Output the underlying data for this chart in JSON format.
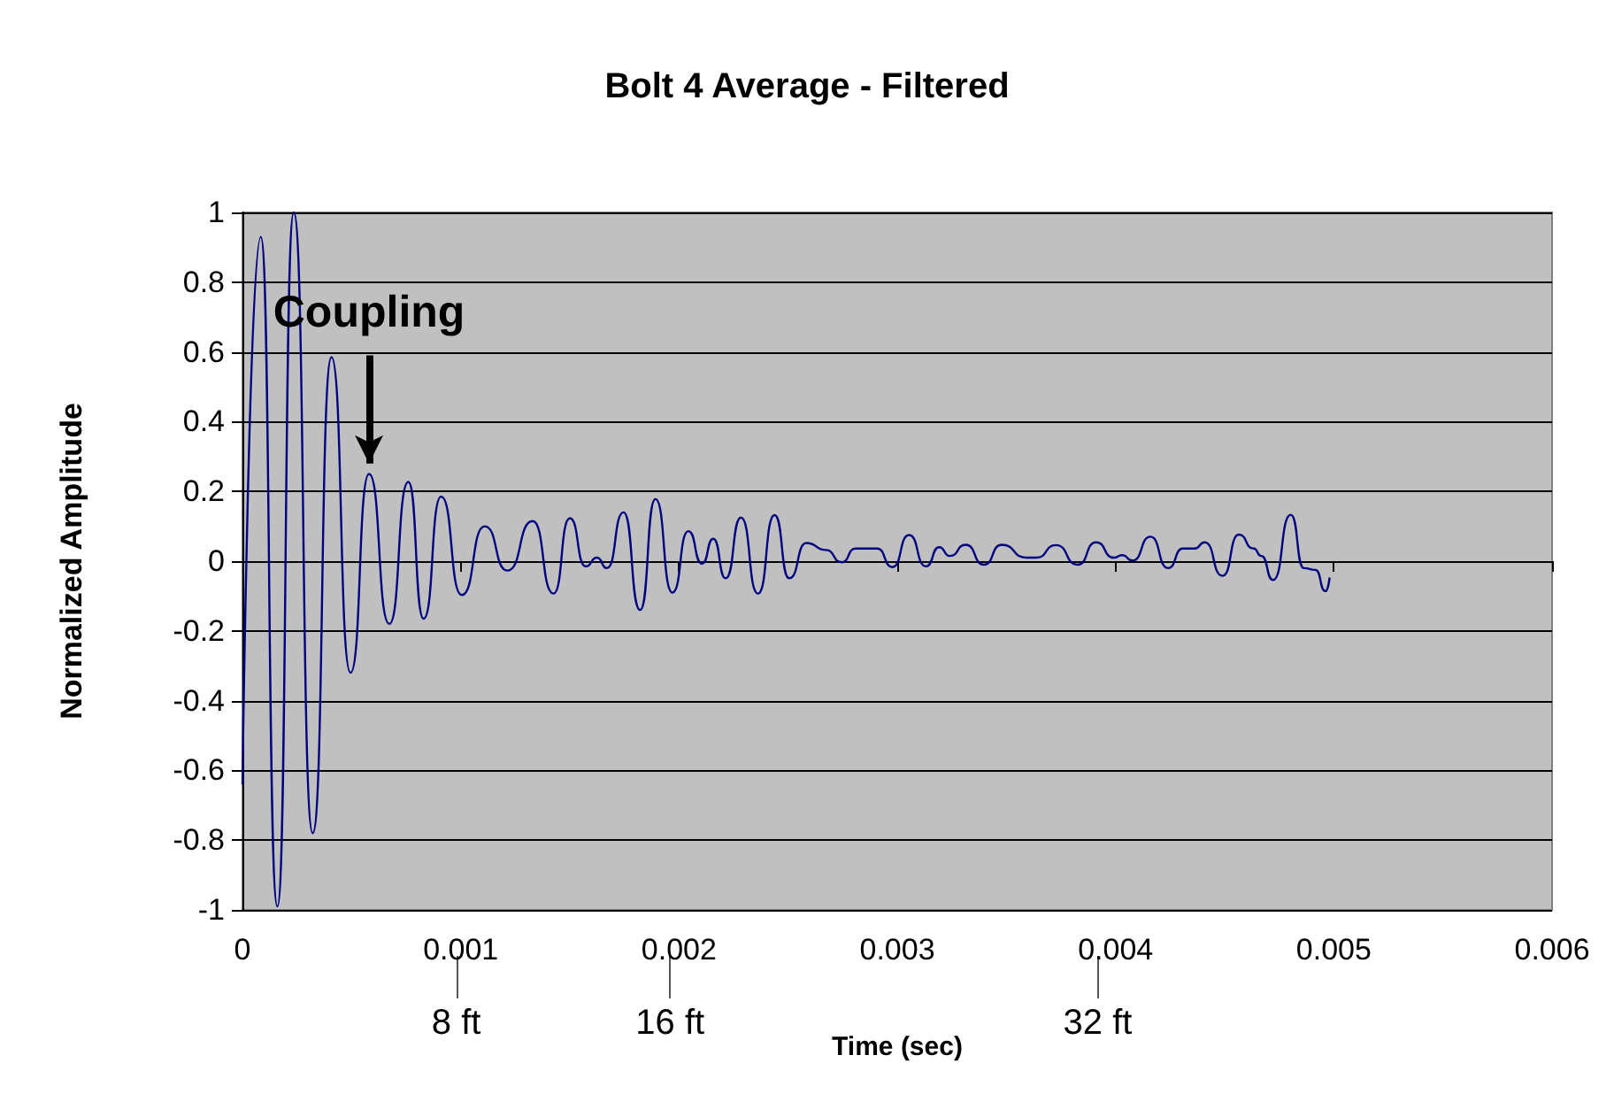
{
  "chart_data": {
    "type": "line",
    "title": "Bolt 4 Average - Filtered",
    "xlabel": "Time (sec)",
    "ylabel": "Normalized Amplitude",
    "xlim": [
      0,
      0.006
    ],
    "xticks": [
      0,
      0.001,
      0.002,
      0.003,
      0.004,
      0.005,
      0.006
    ],
    "ylim": [
      -1,
      1
    ],
    "yticks": [
      -1,
      -0.8,
      -0.6,
      -0.4,
      -0.2,
      0,
      0.2,
      0.4,
      0.6,
      0.8,
      1
    ],
    "x2lim": [
      0,
      49
    ],
    "x2ticks": [
      {
        "value": 8,
        "label": "8 ft"
      },
      {
        "value": 16,
        "label": "16 ft"
      },
      {
        "value": 32,
        "label": "32 ft"
      }
    ],
    "grid": "y",
    "marker": "none",
    "line_style": "solid",
    "annotations": [
      {
        "text": "Coupling",
        "x": 0.00058,
        "y": 0.25
      }
    ],
    "series": [
      {
        "color": "#000080",
        "x": [
          0,
          8.4e-05,
          0.00016,
          0.000235,
          0.000322,
          0.000408,
          0.000495,
          0.00058,
          0.000673,
          0.00076,
          0.00083,
          0.00091,
          0.001005,
          0.00111,
          0.001214,
          0.00133,
          0.001425,
          0.0015,
          0.001573,
          0.001624,
          0.00167,
          0.001746,
          0.001822,
          0.001892,
          0.00197,
          0.002043,
          0.002106,
          0.002157,
          0.002214,
          0.002284,
          0.002362,
          0.002438,
          0.002505,
          0.002584,
          0.002673,
          0.002746,
          0.002808,
          0.002908,
          0.002978,
          0.003054,
          0.003132,
          0.003192,
          0.003241,
          0.003314,
          0.003397,
          0.003478,
          0.003592,
          0.003638,
          0.003727,
          0.003827,
          0.003911,
          0.003992,
          0.00403,
          0.004078,
          0.00416,
          0.004241,
          0.004308,
          0.004362,
          0.004409,
          0.00449,
          0.004565,
          0.004633,
          0.004668,
          0.004722,
          0.004803,
          0.004863,
          0.004916,
          0.004962,
          0.004981
        ],
        "values": [
          -0.64,
          0.93,
          -0.99,
          1.0,
          -0.78,
          0.585,
          -0.32,
          0.25,
          -0.18,
          0.227,
          -0.165,
          0.185,
          -0.097,
          0.1,
          -0.027,
          0.115,
          -0.093,
          0.123,
          -0.015,
          0.01,
          -0.02,
          0.14,
          -0.14,
          0.178,
          -0.09,
          0.086,
          -0.007,
          0.064,
          -0.049,
          0.125,
          -0.093,
          0.132,
          -0.049,
          0.052,
          0.032,
          -0.003,
          0.036,
          0.036,
          -0.017,
          0.075,
          -0.015,
          0.04,
          0.015,
          0.047,
          -0.01,
          0.047,
          0.01,
          0.01,
          0.046,
          -0.01,
          0.054,
          0.01,
          0.017,
          0.002,
          0.07,
          -0.02,
          0.036,
          0.036,
          0.054,
          -0.042,
          0.076,
          0.036,
          0.015,
          -0.054,
          0.133,
          -0.02,
          -0.025,
          -0.086,
          -0.047
        ]
      }
    ]
  }
}
